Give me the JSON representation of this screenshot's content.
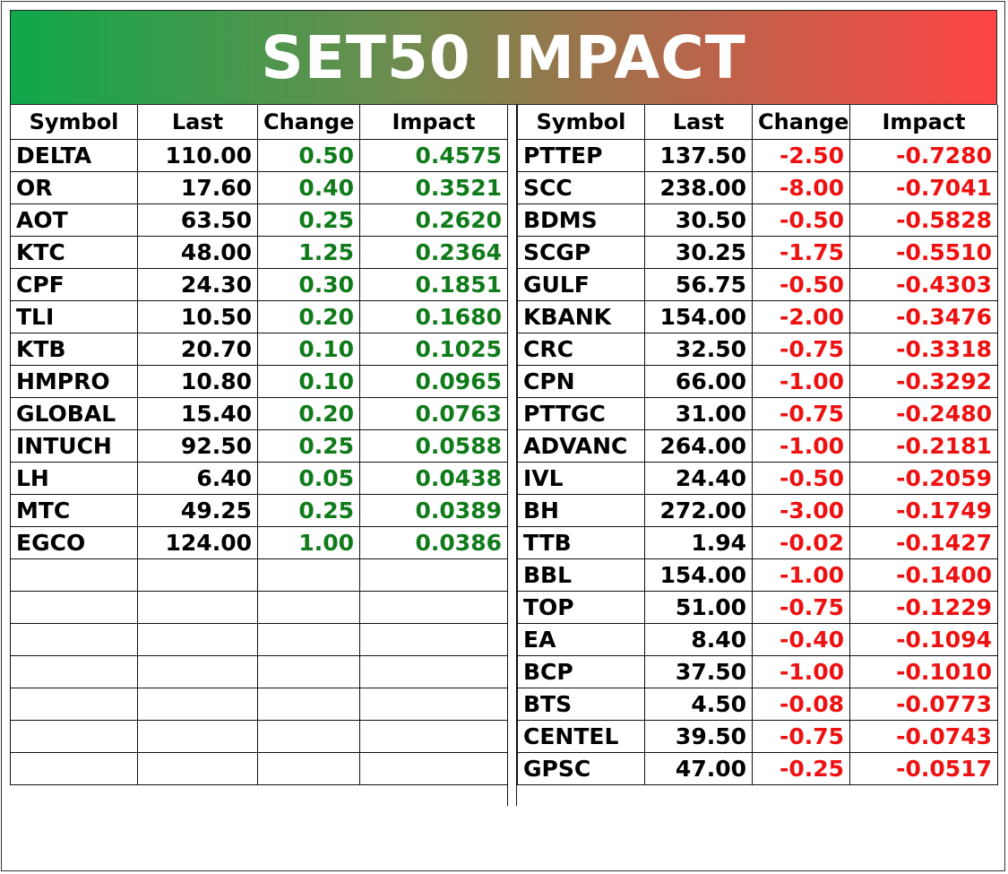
{
  "title": "SET50 IMPACT",
  "colors": {
    "positive": "#107b1a",
    "negative": "#ee1111",
    "banner_left": "#0fa84a",
    "banner_right": "#ff4444"
  },
  "headers": [
    "Symbol",
    "Last",
    "Change",
    "Impact"
  ],
  "gainers": [
    {
      "symbol": "DELTA",
      "last": "110.00",
      "change": "0.50",
      "impact": "0.4575"
    },
    {
      "symbol": "OR",
      "last": "17.60",
      "change": "0.40",
      "impact": "0.3521"
    },
    {
      "symbol": "AOT",
      "last": "63.50",
      "change": "0.25",
      "impact": "0.2620"
    },
    {
      "symbol": "KTC",
      "last": "48.00",
      "change": "1.25",
      "impact": "0.2364"
    },
    {
      "symbol": "CPF",
      "last": "24.30",
      "change": "0.30",
      "impact": "0.1851"
    },
    {
      "symbol": "TLI",
      "last": "10.50",
      "change": "0.20",
      "impact": "0.1680"
    },
    {
      "symbol": "KTB",
      "last": "20.70",
      "change": "0.10",
      "impact": "0.1025"
    },
    {
      "symbol": "HMPRO",
      "last": "10.80",
      "change": "0.10",
      "impact": "0.0965"
    },
    {
      "symbol": "GLOBAL",
      "last": "15.40",
      "change": "0.20",
      "impact": "0.0763"
    },
    {
      "symbol": "INTUCH",
      "last": "92.50",
      "change": "0.25",
      "impact": "0.0588"
    },
    {
      "symbol": "LH",
      "last": "6.40",
      "change": "0.05",
      "impact": "0.0438"
    },
    {
      "symbol": "MTC",
      "last": "49.25",
      "change": "0.25",
      "impact": "0.0389"
    },
    {
      "symbol": "EGCO",
      "last": "124.00",
      "change": "1.00",
      "impact": "0.0386"
    }
  ],
  "losers": [
    {
      "symbol": "PTTEP",
      "last": "137.50",
      "change": "-2.50",
      "impact": "-0.7280"
    },
    {
      "symbol": "SCC",
      "last": "238.00",
      "change": "-8.00",
      "impact": "-0.7041"
    },
    {
      "symbol": "BDMS",
      "last": "30.50",
      "change": "-0.50",
      "impact": "-0.5828"
    },
    {
      "symbol": "SCGP",
      "last": "30.25",
      "change": "-1.75",
      "impact": "-0.5510"
    },
    {
      "symbol": "GULF",
      "last": "56.75",
      "change": "-0.50",
      "impact": "-0.4303"
    },
    {
      "symbol": "KBANK",
      "last": "154.00",
      "change": "-2.00",
      "impact": "-0.3476"
    },
    {
      "symbol": "CRC",
      "last": "32.50",
      "change": "-0.75",
      "impact": "-0.3318"
    },
    {
      "symbol": "CPN",
      "last": "66.00",
      "change": "-1.00",
      "impact": "-0.3292"
    },
    {
      "symbol": "PTTGC",
      "last": "31.00",
      "change": "-0.75",
      "impact": "-0.2480"
    },
    {
      "symbol": "ADVANC",
      "last": "264.00",
      "change": "-1.00",
      "impact": "-0.2181"
    },
    {
      "symbol": "IVL",
      "last": "24.40",
      "change": "-0.50",
      "impact": "-0.2059"
    },
    {
      "symbol": "BH",
      "last": "272.00",
      "change": "-3.00",
      "impact": "-0.1749"
    },
    {
      "symbol": "TTB",
      "last": "1.94",
      "change": "-0.02",
      "impact": "-0.1427"
    },
    {
      "symbol": "BBL",
      "last": "154.00",
      "change": "-1.00",
      "impact": "-0.1400"
    },
    {
      "symbol": "TOP",
      "last": "51.00",
      "change": "-0.75",
      "impact": "-0.1229"
    },
    {
      "symbol": "EA",
      "last": "8.40",
      "change": "-0.40",
      "impact": "-0.1094"
    },
    {
      "symbol": "BCP",
      "last": "37.50",
      "change": "-1.00",
      "impact": "-0.1010"
    },
    {
      "symbol": "BTS",
      "last": "4.50",
      "change": "-0.08",
      "impact": "-0.0773"
    },
    {
      "symbol": "CENTEL",
      "last": "39.50",
      "change": "-0.75",
      "impact": "-0.0743"
    },
    {
      "symbol": "GPSC",
      "last": "47.00",
      "change": "-0.25",
      "impact": "-0.0517"
    }
  ]
}
